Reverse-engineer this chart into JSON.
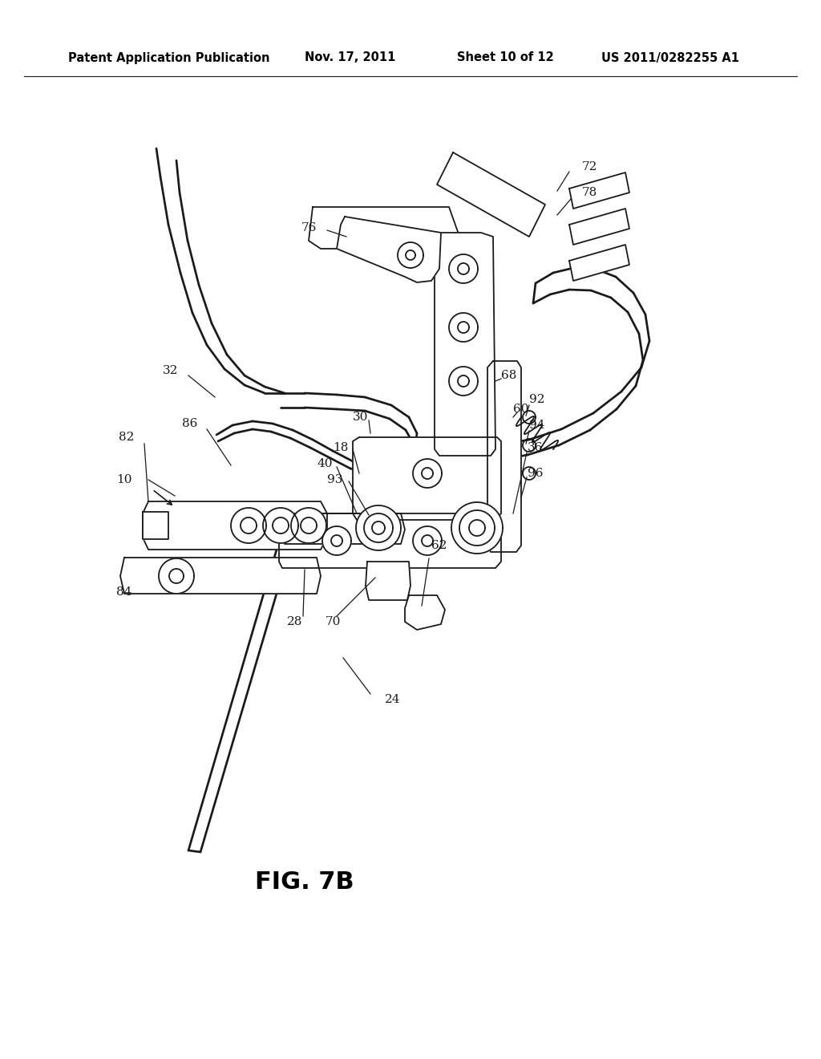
{
  "title": "Patent Application Publication",
  "date": "Nov. 17, 2011",
  "sheet": "Sheet 10 of 12",
  "patent_num": "US 2011/0282255 A1",
  "fig_label": "FIG. 7B",
  "background_color": "#ffffff",
  "line_color": "#1a1a1a",
  "lw": 1.3
}
